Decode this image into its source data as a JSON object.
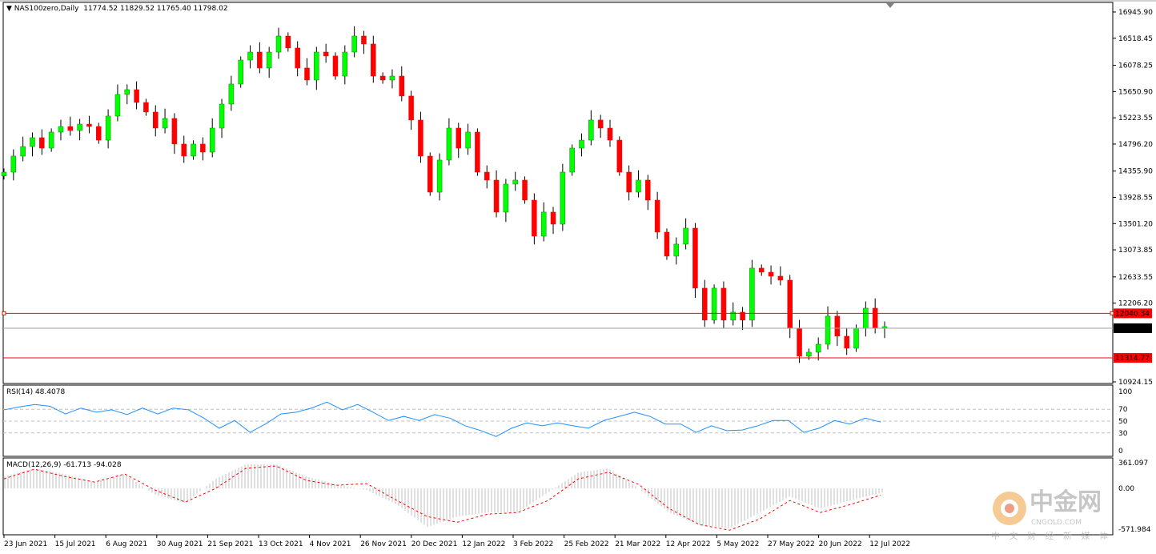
{
  "header": {
    "symbol": "NAS100zero,Daily",
    "ohlc": "11774.52 11829.52 11765.40 11798.02"
  },
  "colors": {
    "bull": "#00ff00",
    "bear": "#ff0000",
    "wick": "#000000",
    "rsi": "#1e90ff",
    "macd_hist": "#c0c0c0",
    "macd_signal": "#ff0000",
    "level_line": "#ff0000",
    "price_line": "#a0a0a0"
  },
  "logo": {
    "text": "中金网",
    "domain": "CNGOLD.COM",
    "tagline": "中 文 财 经 新 媒 体",
    "icon": "gold-coin-logo-icon"
  },
  "chart_data": [
    {
      "type": "candlestick",
      "title": "NAS100zero,Daily",
      "ylim": [
        10924.15,
        16945.9
      ],
      "y_ticks": [
        "16945.90",
        "16518.45",
        "16078.25",
        "15650.90",
        "15223.55",
        "14796.20",
        "14355.90",
        "13928.55",
        "13501.20",
        "13073.85",
        "12633.55",
        "12206.20",
        "10924.15"
      ],
      "x_ticks": [
        "23 Jun 2021",
        "15 Jul 2021",
        "6 Aug 2021",
        "30 Aug 2021",
        "21 Sep 2021",
        "13 Oct 2021",
        "4 Nov 2021",
        "26 Nov 2021",
        "20 Dec 2021",
        "12 Jan 2022",
        "3 Feb 2022",
        "25 Feb 2022",
        "21 Mar 2022",
        "12 Apr 2022",
        "5 May 2022",
        "27 May 2022",
        "20 Jun 2022",
        "12 Jul 2022"
      ],
      "close": [
        14339,
        14600,
        14756,
        14900,
        14730,
        14991,
        15082,
        15017,
        15121,
        15082,
        14860,
        15252,
        15604,
        15682,
        15473,
        15317,
        15056,
        15213,
        14796,
        14600,
        14796,
        14665,
        15056,
        15447,
        15773,
        16164,
        16294,
        16034,
        16294,
        16555,
        16360,
        16034,
        15838,
        16294,
        16230,
        15903,
        16294,
        16555,
        16425,
        15903,
        15838,
        15903,
        15578,
        15187,
        14600,
        14013,
        14535,
        15056,
        14730,
        14991,
        14339,
        14209,
        13688,
        14144,
        14209,
        13883,
        13297,
        13688,
        13492,
        14339,
        14730,
        14860,
        15187,
        15056,
        14860,
        14339,
        14013,
        14209,
        13883,
        13362,
        12971,
        13167,
        13427,
        12450,
        11929,
        12450,
        11929,
        12059,
        11929,
        12776,
        12710,
        12645,
        12580,
        11798,
        11342,
        11407,
        11537,
        11994,
        11668,
        11472,
        11798,
        12124,
        11798,
        11824
      ],
      "horizontal_lines": [
        {
          "value": 12040.34,
          "label": "12040.34",
          "color": "#ff0000"
        },
        {
          "value": 11798.02,
          "label": "11798.02",
          "color": "#a0a0a0",
          "note": "current bid"
        },
        {
          "value": 11314.77,
          "label": "11314.77",
          "color": "#ff0000"
        }
      ]
    },
    {
      "type": "line",
      "title": "RSI(14) 48.4078",
      "ylim": [
        0,
        100
      ],
      "y_ticks": [
        "100",
        "70",
        "50",
        "30",
        "0"
      ],
      "levels": [
        70,
        50,
        30
      ],
      "values": [
        69,
        74,
        78,
        75,
        62,
        72,
        65,
        69,
        61,
        72,
        62,
        72,
        69,
        55,
        38,
        51,
        31,
        45,
        62,
        65,
        72,
        82,
        69,
        78,
        65,
        51,
        58,
        51,
        61,
        55,
        42,
        34,
        24,
        38,
        47,
        42,
        47,
        42,
        38,
        51,
        58,
        65,
        58,
        45,
        45,
        31,
        42,
        34,
        35,
        42,
        51,
        51,
        31,
        38,
        51,
        45,
        55,
        48.4
      ]
    },
    {
      "type": "bar",
      "title": "MACD(12,26,9) -61.713 -94.028",
      "ylim": [
        -571.984,
        361.097
      ],
      "y_ticks": [
        "361.097",
        "0.00",
        "-571.984"
      ],
      "series": [
        {
          "kind": "histogram",
          "values": [
            170,
            282,
            203,
            90,
            203,
            -90,
            -203,
            135,
            338,
            338,
            170,
            56,
            -23,
            -226,
            -541,
            -395,
            -338,
            -338,
            -56,
            226,
            282,
            0,
            -338,
            -507,
            -564,
            -338,
            -113,
            -282,
            -169,
            -62
          ]
        },
        {
          "kind": "signal",
          "values": [
            135,
            270,
            169,
            90,
            203,
            -23,
            -192,
            0,
            282,
            316,
            113,
            45,
            68,
            -169,
            -395,
            -474,
            -361,
            -338,
            -169,
            135,
            226,
            56,
            -282,
            -507,
            -586,
            -429,
            -169,
            -338,
            -226,
            -94
          ]
        }
      ]
    }
  ]
}
